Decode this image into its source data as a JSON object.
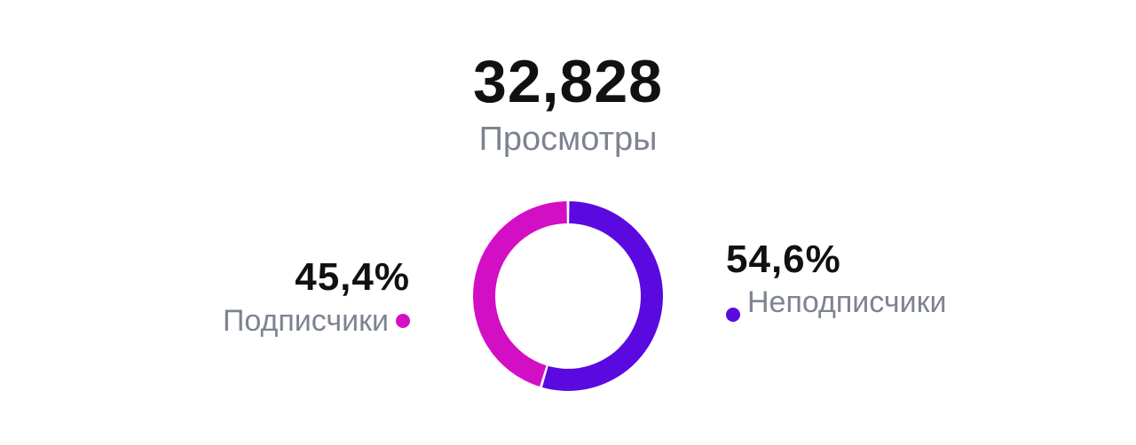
{
  "views": {
    "total": "32,828",
    "label": "Просмотры"
  },
  "chart_data": {
    "type": "pie",
    "style": "donut",
    "categories": [
      "Подписчики",
      "Неподписчики"
    ],
    "values": [
      45.4,
      54.6
    ],
    "value_labels": [
      "45,4%",
      "54,6%"
    ],
    "colors": [
      "#d30fc6",
      "#5a0ae0"
    ]
  },
  "legend": {
    "subscribers": {
      "percent": "45,4%",
      "label": "Подписчики",
      "color": "#d30fc6"
    },
    "non_subscribers": {
      "percent": "54,6%",
      "label": "Неподписчики",
      "color": "#5a0ae0"
    }
  }
}
